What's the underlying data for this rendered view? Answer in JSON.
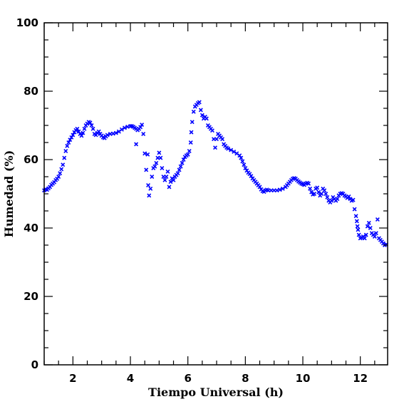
{
  "chart_data": {
    "type": "scatter",
    "xlabel": "Tiempo Universal (h)",
    "ylabel": "Humedad (%)",
    "xlim": [
      1.0,
      12.95
    ],
    "ylim": [
      0,
      100
    ],
    "x_ticks": [
      2,
      4,
      6,
      8,
      10,
      12
    ],
    "y_ticks": [
      0,
      20,
      40,
      60,
      80,
      100
    ],
    "marker": "x",
    "color": "#0000ff",
    "grid": false,
    "series": [
      {
        "points": [
          [
            1.0,
            51.0
          ],
          [
            1.05,
            51.3
          ],
          [
            1.1,
            51.2
          ],
          [
            1.15,
            51.6
          ],
          [
            1.2,
            52.0
          ],
          [
            1.25,
            52.6
          ],
          [
            1.3,
            53.0
          ],
          [
            1.35,
            53.4
          ],
          [
            1.4,
            54.0
          ],
          [
            1.45,
            54.4
          ],
          [
            1.5,
            55.0
          ],
          [
            1.55,
            56.0
          ],
          [
            1.6,
            57.2
          ],
          [
            1.65,
            58.5
          ],
          [
            1.7,
            60.5
          ],
          [
            1.75,
            62.5
          ],
          [
            1.8,
            64.0
          ],
          [
            1.85,
            65.0
          ],
          [
            1.9,
            65.8
          ],
          [
            1.95,
            66.5
          ],
          [
            2.0,
            67.2
          ],
          [
            2.05,
            68.0
          ],
          [
            2.1,
            68.6
          ],
          [
            2.15,
            69.0
          ],
          [
            2.2,
            68.2
          ],
          [
            2.25,
            67.5
          ],
          [
            2.3,
            67.0
          ],
          [
            2.35,
            67.8
          ],
          [
            2.4,
            69.0
          ],
          [
            2.45,
            70.0
          ],
          [
            2.5,
            70.5
          ],
          [
            2.55,
            71.0
          ],
          [
            2.6,
            70.8
          ],
          [
            2.65,
            70.0
          ],
          [
            2.7,
            69.0
          ],
          [
            2.75,
            67.5
          ],
          [
            2.8,
            67.2
          ],
          [
            2.85,
            67.8
          ],
          [
            2.9,
            68.2
          ],
          [
            2.95,
            67.5
          ],
          [
            3.0,
            67.0
          ],
          [
            3.05,
            66.5
          ],
          [
            3.1,
            66.3
          ],
          [
            3.15,
            66.8
          ],
          [
            3.2,
            67.2
          ],
          [
            3.3,
            67.5
          ],
          [
            3.4,
            67.6
          ],
          [
            3.5,
            67.8
          ],
          [
            3.6,
            68.2
          ],
          [
            3.7,
            68.8
          ],
          [
            3.8,
            69.3
          ],
          [
            3.9,
            69.6
          ],
          [
            4.0,
            69.8
          ],
          [
            4.05,
            69.8
          ],
          [
            4.1,
            69.6
          ],
          [
            4.15,
            69.3
          ],
          [
            4.2,
            69.0
          ],
          [
            4.25,
            68.6
          ],
          [
            4.3,
            69.0
          ],
          [
            4.35,
            69.5
          ],
          [
            4.4,
            70.2
          ],
          [
            4.2,
            64.5
          ],
          [
            4.45,
            67.5
          ],
          [
            4.5,
            61.8
          ],
          [
            4.55,
            57.0
          ],
          [
            4.6,
            61.5
          ],
          [
            4.62,
            52.5
          ],
          [
            4.65,
            49.5
          ],
          [
            4.7,
            51.5
          ],
          [
            4.75,
            55.0
          ],
          [
            4.8,
            57.5
          ],
          [
            4.85,
            58.0
          ],
          [
            4.9,
            59.0
          ],
          [
            4.95,
            60.5
          ],
          [
            5.0,
            62.0
          ],
          [
            5.05,
            60.5
          ],
          [
            5.1,
            57.5
          ],
          [
            5.15,
            55.0
          ],
          [
            5.2,
            54.0
          ],
          [
            5.25,
            55.0
          ],
          [
            5.3,
            56.5
          ],
          [
            5.35,
            52.0
          ],
          [
            5.4,
            53.5
          ],
          [
            5.45,
            54.5
          ],
          [
            5.5,
            54.0
          ],
          [
            5.55,
            55.0
          ],
          [
            5.6,
            55.5
          ],
          [
            5.65,
            56.0
          ],
          [
            5.7,
            57.0
          ],
          [
            5.75,
            58.0
          ],
          [
            5.8,
            59.0
          ],
          [
            5.85,
            60.0
          ],
          [
            5.9,
            60.8
          ],
          [
            5.95,
            61.2
          ],
          [
            6.0,
            61.5
          ],
          [
            6.05,
            62.5
          ],
          [
            6.1,
            65.0
          ],
          [
            6.12,
            68.0
          ],
          [
            6.15,
            71.0
          ],
          [
            6.2,
            74.0
          ],
          [
            6.25,
            75.5
          ],
          [
            6.3,
            76.0
          ],
          [
            6.35,
            76.5
          ],
          [
            6.4,
            76.8
          ],
          [
            6.45,
            74.5
          ],
          [
            6.5,
            73.0
          ],
          [
            6.55,
            72.0
          ],
          [
            6.6,
            72.5
          ],
          [
            6.65,
            72.0
          ],
          [
            6.7,
            70.0
          ],
          [
            6.75,
            69.5
          ],
          [
            6.8,
            69.0
          ],
          [
            6.85,
            68.5
          ],
          [
            6.9,
            66.0
          ],
          [
            6.95,
            63.5
          ],
          [
            7.0,
            66.0
          ],
          [
            7.05,
            67.5
          ],
          [
            7.1,
            67.0
          ],
          [
            7.15,
            66.5
          ],
          [
            7.2,
            66.0
          ],
          [
            7.25,
            64.5
          ],
          [
            7.3,
            64.0
          ],
          [
            7.35,
            63.5
          ],
          [
            7.4,
            63.2
          ],
          [
            7.5,
            62.8
          ],
          [
            7.6,
            62.3
          ],
          [
            7.7,
            61.8
          ],
          [
            7.8,
            61.2
          ],
          [
            7.85,
            60.5
          ],
          [
            7.9,
            59.5
          ],
          [
            7.95,
            58.5
          ],
          [
            8.0,
            57.5
          ],
          [
            8.05,
            56.8
          ],
          [
            8.1,
            56.2
          ],
          [
            8.15,
            55.8
          ],
          [
            8.2,
            55.2
          ],
          [
            8.25,
            54.5
          ],
          [
            8.3,
            54.0
          ],
          [
            8.35,
            53.5
          ],
          [
            8.4,
            53.0
          ],
          [
            8.45,
            52.5
          ],
          [
            8.5,
            52.0
          ],
          [
            8.55,
            51.3
          ],
          [
            8.6,
            50.8
          ],
          [
            8.65,
            50.6
          ],
          [
            8.7,
            51.0
          ],
          [
            8.75,
            51.2
          ],
          [
            8.8,
            51.0
          ],
          [
            8.9,
            51.0
          ],
          [
            9.0,
            51.0
          ],
          [
            9.1,
            51.0
          ],
          [
            9.2,
            51.2
          ],
          [
            9.3,
            51.5
          ],
          [
            9.4,
            52.0
          ],
          [
            9.45,
            52.5
          ],
          [
            9.5,
            53.0
          ],
          [
            9.55,
            53.5
          ],
          [
            9.6,
            54.0
          ],
          [
            9.65,
            54.4
          ],
          [
            9.7,
            54.6
          ],
          [
            9.75,
            54.4
          ],
          [
            9.8,
            54.0
          ],
          [
            9.85,
            53.6
          ],
          [
            9.9,
            53.3
          ],
          [
            9.95,
            53.0
          ],
          [
            10.0,
            52.8
          ],
          [
            10.05,
            52.6
          ],
          [
            10.1,
            53.0
          ],
          [
            10.15,
            53.2
          ],
          [
            10.2,
            53.0
          ],
          [
            10.25,
            51.5
          ],
          [
            10.3,
            50.5
          ],
          [
            10.35,
            49.8
          ],
          [
            10.4,
            50.0
          ],
          [
            10.45,
            51.5
          ],
          [
            10.5,
            51.8
          ],
          [
            10.55,
            50.5
          ],
          [
            10.6,
            49.5
          ],
          [
            10.65,
            50.0
          ],
          [
            10.7,
            51.5
          ],
          [
            10.75,
            51.0
          ],
          [
            10.8,
            50.0
          ],
          [
            10.85,
            49.0
          ],
          [
            10.9,
            48.0
          ],
          [
            10.95,
            47.5
          ],
          [
            11.0,
            48.0
          ],
          [
            11.05,
            49.0
          ],
          [
            11.1,
            48.5
          ],
          [
            11.15,
            48.0
          ],
          [
            11.2,
            48.5
          ],
          [
            11.25,
            49.5
          ],
          [
            11.3,
            50.0
          ],
          [
            11.35,
            50.2
          ],
          [
            11.4,
            50.0
          ],
          [
            11.45,
            49.5
          ],
          [
            11.5,
            49.2
          ],
          [
            11.55,
            48.8
          ],
          [
            11.6,
            49.2
          ],
          [
            11.65,
            48.5
          ],
          [
            11.7,
            48.0
          ],
          [
            11.75,
            48.2
          ],
          [
            11.8,
            45.5
          ],
          [
            11.85,
            43.5
          ],
          [
            11.88,
            42.0
          ],
          [
            11.9,
            40.5
          ],
          [
            11.92,
            39.5
          ],
          [
            11.95,
            38.0
          ],
          [
            12.0,
            37.0
          ],
          [
            12.05,
            37.2
          ],
          [
            12.1,
            37.5
          ],
          [
            12.15,
            37.0
          ],
          [
            12.2,
            38.0
          ],
          [
            12.25,
            40.5
          ],
          [
            12.3,
            41.5
          ],
          [
            12.35,
            40.0
          ],
          [
            12.4,
            38.5
          ],
          [
            12.45,
            38.0
          ],
          [
            12.5,
            37.5
          ],
          [
            12.55,
            38.5
          ],
          [
            12.6,
            42.5
          ],
          [
            12.65,
            37.0
          ],
          [
            12.7,
            36.5
          ],
          [
            12.75,
            36.0
          ],
          [
            12.8,
            35.5
          ],
          [
            12.85,
            35.0
          ],
          [
            12.9,
            35.2
          ]
        ]
      }
    ]
  }
}
